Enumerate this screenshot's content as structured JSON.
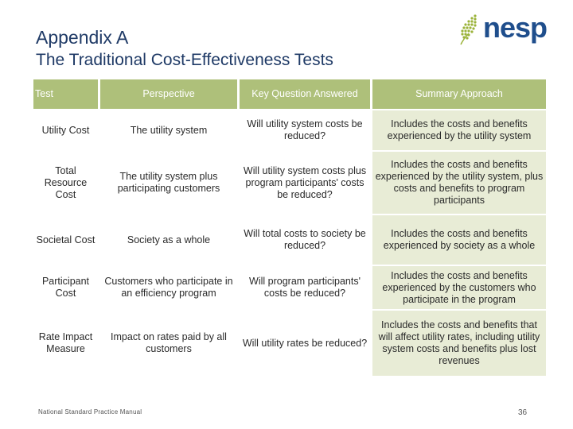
{
  "title": "Appendix A",
  "subtitle": "The Traditional Cost-Effectiveness Tests",
  "logo": {
    "text": "nesp",
    "accent": "#9bb33a",
    "brand": "#1f4e8c"
  },
  "table": {
    "headers": [
      "Test",
      "Perspective",
      "Key Question Answered",
      "Summary Approach"
    ],
    "rows": [
      [
        "Utility Cost",
        "The utility system",
        "Will utility system costs be reduced?",
        "Includes the costs and benefits experienced by the utility system"
      ],
      [
        "Total Resource Cost",
        "The utility system plus participating customers",
        "Will utility system costs plus program participants' costs be reduced?",
        "Includes the costs and benefits experienced by the utility system, plus costs and benefits to program participants"
      ],
      [
        "Societal Cost",
        "Society as a whole",
        "Will total costs to society be reduced?",
        "Includes the costs and benefits experienced by society as a whole"
      ],
      [
        "Participant Cost",
        "Customers who participate in an efficiency program",
        "Will program participants' costs be reduced?",
        "Includes the costs and benefits experienced by the customers who participate in the program"
      ],
      [
        "Rate Impact Measure",
        "Impact on rates paid by all customers",
        "Will utility rates be reduced?",
        "Includes the costs and benefits that will affect utility rates, including utility system costs and benefits plus lost revenues"
      ]
    ]
  },
  "footer": "National Standard Practice Manual",
  "page_number": "36",
  "colors": {
    "header_green": "#aec07a",
    "cell_tint": "#e8ecd6",
    "title_blue": "#1f3a66"
  }
}
